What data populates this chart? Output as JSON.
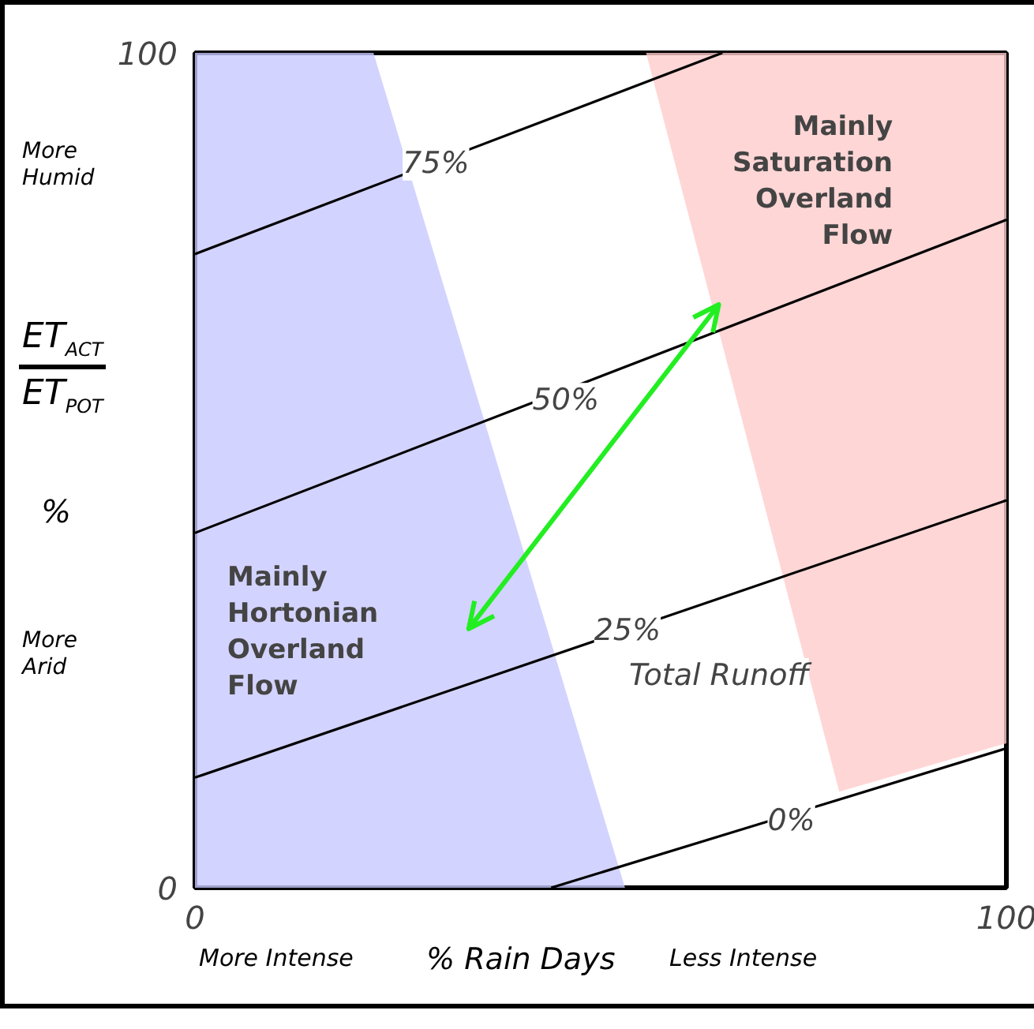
{
  "chart_data": {
    "type": "line",
    "xlabel": "% Rain Days",
    "ylabel": "ET$_{ACT}$ ET$_{POT}$ %",
    "xlim": [
      0,
      100
    ],
    "ylim": [
      0,
      100
    ],
    "xticks": [
      0,
      100
    ],
    "yticks": [
      0,
      100
    ],
    "marker": "none",
    "line_style": "solid",
    "series": [
      {
        "type": "area",
        "color": "#c8c8ff",
        "x": [
          0,
          22,
          53
        ],
        "values": [
          100,
          100,
          0
        ]
      },
      {
        "type": "line",
        "color": "#ffcccc",
        "x": [
          55.6,
          79.4,
          100
        ],
        "values": [
          null,
          null,
          null
        ],
        "lower": [
          100,
          11.5,
          17.3
        ],
        "upper": [
          100,
          100,
          100
        ]
      },
      {
        "type": "line",
        "color": "#000000",
        "x": [
          43.9,
          100
        ],
        "values": [
          0,
          16.7
        ]
      },
      {
        "type": "line",
        "color": "#000000",
        "x": [
          0,
          100
        ],
        "values": [
          13.2,
          46.4
        ]
      },
      {
        "type": "line",
        "color": "#000000",
        "x": [
          0,
          100
        ],
        "values": [
          42.5,
          80
        ]
      },
      {
        "type": "line",
        "color": "#000000",
        "x": [
          0,
          65
        ],
        "values": [
          75.9,
          100
        ]
      }
    ],
    "annotations": [
      "More Humid",
      "More Arid",
      "More Intense",
      "Less Intense",
      "Total Runoff",
      "Mainly Hortonian Overland Flow",
      "Mainly Saturation Overland Flow",
      {
        "text": "75%",
        "x": 29.7,
        "y": 86.8
      },
      {
        "text": "50%",
        "x": 45.7,
        "y": 58.4
      },
      {
        "text": "25%",
        "x": 53.3,
        "y": 30.8
      },
      {
        "text": "0%",
        "x": 73.5,
        "y": 8
      }
    ]
  }
}
